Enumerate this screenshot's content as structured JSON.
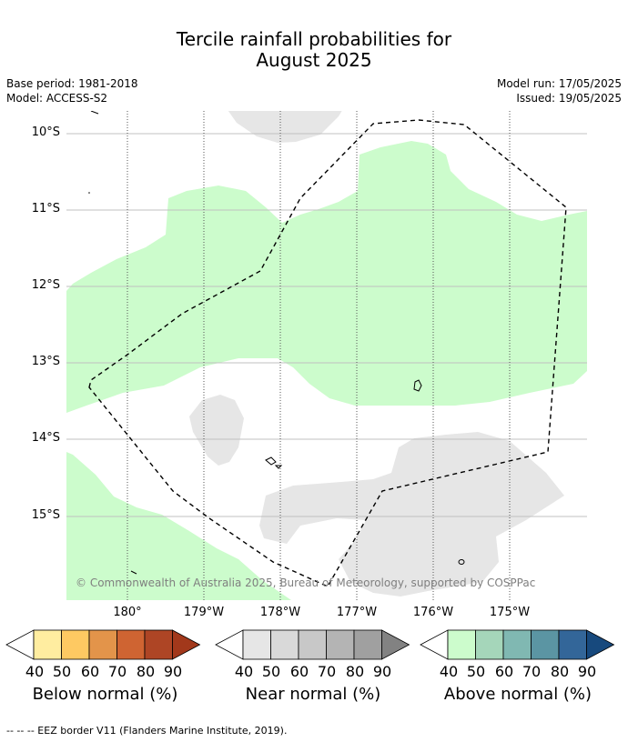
{
  "title_line1": "Tercile rainfall probabilities for",
  "title_line2": "August 2025",
  "base_period": "Base period: 1981-2018",
  "model": "Model: ACCESS-S2",
  "model_run": "Model run: 17/05/2025",
  "issued": "Issued: 19/05/2025",
  "lat_labels": [
    "10°S",
    "11°S",
    "12°S",
    "13°S",
    "14°S",
    "15°S"
  ],
  "lon_labels": [
    "180°",
    "179°W",
    "178°W",
    "177°W",
    "176°W",
    "175°W"
  ],
  "copyright": "© Commonwealth of Australia 2025, Bureau of Meteorology, supported by COSPPac",
  "colorbars": [
    {
      "title": "Below normal (%)",
      "ticks": [
        "40",
        "50",
        "60",
        "70",
        "80",
        "90"
      ],
      "colors": [
        "#ffeda0",
        "#fec962",
        "#e3944a",
        "#cf6432",
        "#ae4525",
        "#a2381b"
      ]
    },
    {
      "title": "Near normal (%)",
      "ticks": [
        "40",
        "50",
        "60",
        "70",
        "80",
        "90"
      ],
      "colors": [
        "#e6e6e6",
        "#d9d9d9",
        "#c8c8c8",
        "#b4b4b4",
        "#a0a0a0",
        "#828282"
      ]
    },
    {
      "title": "Above normal (%)",
      "ticks": [
        "40",
        "50",
        "60",
        "70",
        "80",
        "90"
      ],
      "colors": [
        "#ccfccc",
        "#a5d6ba",
        "#80b8b2",
        "#5b95a3",
        "#336699",
        "#17497d"
      ]
    }
  ],
  "footer": "--  --  -- EEZ border V11 (Flanders Marine Institute, 2019).",
  "colors": {
    "above_normal": "#ccfccc",
    "near_normal": "#e6e6e6",
    "gridline": "#c0c0c0"
  }
}
